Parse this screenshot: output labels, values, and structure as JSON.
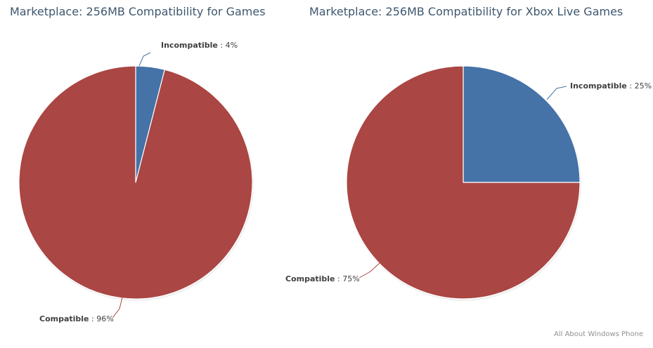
{
  "chart_data": [
    {
      "type": "pie",
      "title": "Marketplace: 256MB Compatibility for Games",
      "series": [
        {
          "name": "Incompatible",
          "value": 4,
          "value_label": "4%",
          "color": "#4572a7"
        },
        {
          "name": "Compatible",
          "value": 96,
          "value_label": "96%",
          "color": "#aa4643"
        }
      ]
    },
    {
      "type": "pie",
      "title": "Marketplace: 256MB Compatibility for Xbox Live Games",
      "series": [
        {
          "name": "Incompatible",
          "value": 25,
          "value_label": "25%",
          "color": "#4572a7"
        },
        {
          "name": "Compatible",
          "value": 75,
          "value_label": "75%",
          "color": "#aa4643"
        }
      ]
    }
  ],
  "credit": "All About Windows Phone"
}
